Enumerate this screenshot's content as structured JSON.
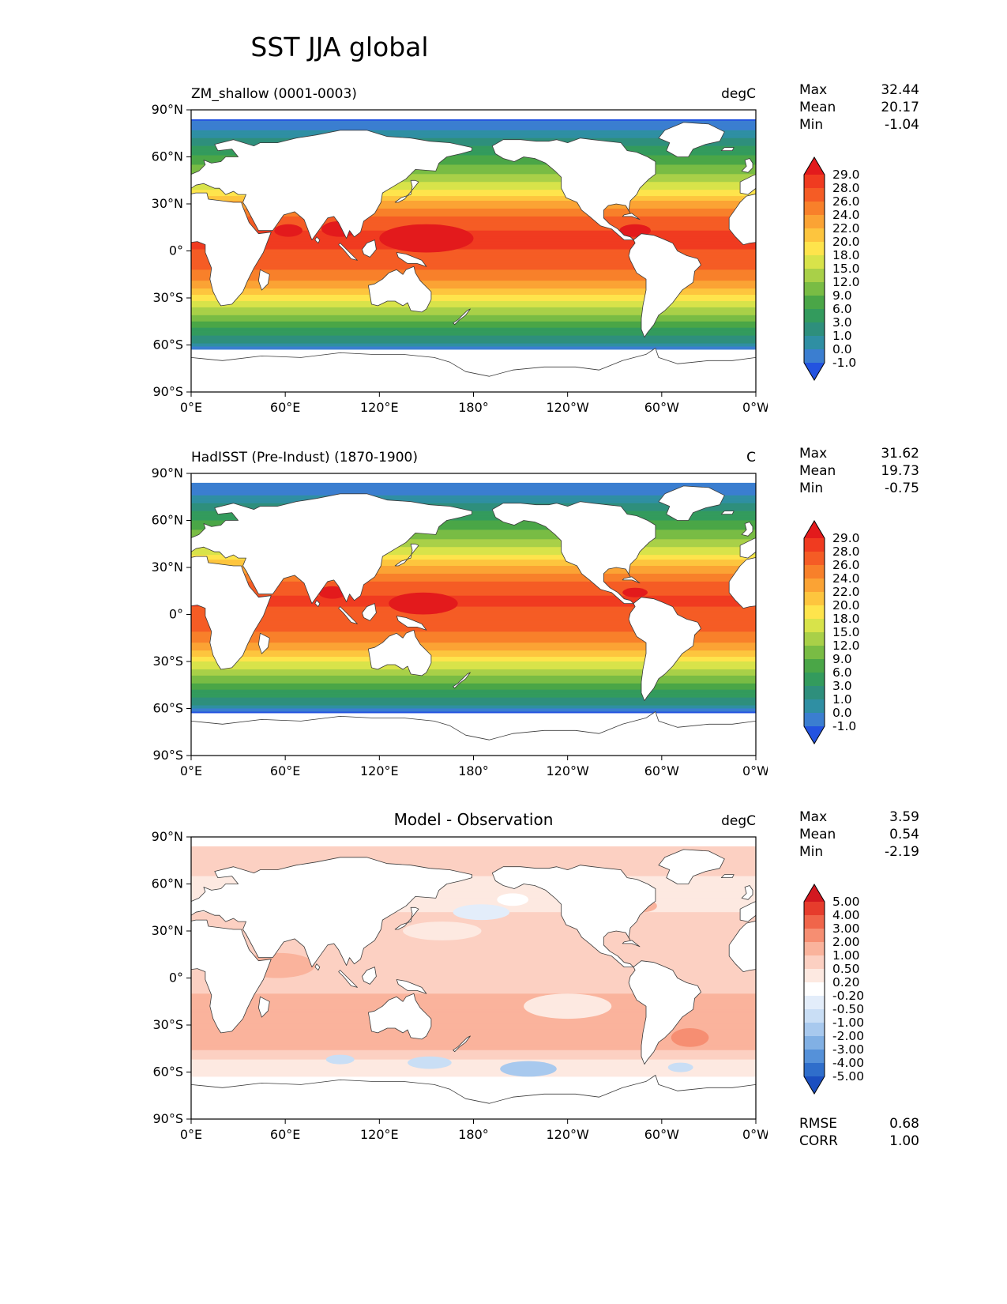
{
  "page_title": "SST JJA global",
  "axes": {
    "lat_ticks": [
      "90°N",
      "60°N",
      "30°N",
      "0°",
      "30°S",
      "60°S",
      "90°S"
    ],
    "lat_values": [
      90,
      60,
      30,
      0,
      -30,
      -60,
      -90
    ],
    "lon_ticks": [
      "0°E",
      "60°E",
      "120°E",
      "180°",
      "120°W",
      "60°W",
      "0°W"
    ],
    "lon_values": [
      0,
      60,
      120,
      180,
      240,
      300,
      360
    ]
  },
  "chart_data": [
    {
      "type": "heatmap",
      "id": "model",
      "title": "ZM_shallow (0001-0003)",
      "units": "degC",
      "stats": {
        "max_label": "Max",
        "max": "32.44",
        "mean_label": "Mean",
        "mean": "20.17",
        "min_label": "Min",
        "min": "-1.04"
      },
      "colorbar": {
        "tick_labels": [
          "29.0",
          "28.0",
          "26.0",
          "24.0",
          "22.0",
          "20.0",
          "18.0",
          "15.0",
          "12.0",
          "9.0",
          "6.0",
          "3.0",
          "1.0",
          "0.0",
          "-1.0"
        ],
        "levels": [
          29,
          28,
          26,
          24,
          22,
          20,
          18,
          15,
          12,
          9,
          6,
          3,
          1,
          0,
          -1
        ],
        "colors": [
          "#e31a1c",
          "#f03b20",
          "#f55c25",
          "#f8802a",
          "#fba334",
          "#fdc53e",
          "#fee44c",
          "#d8e34a",
          "#a9d048",
          "#79bc44",
          "#4aa647",
          "#339b5d",
          "#2e8f7c",
          "#2f8fa3",
          "#3b7ed0",
          "#2353e0"
        ]
      },
      "zonal_profile": {
        "lat": [
          90,
          84,
          80,
          70,
          60,
          50,
          40,
          30,
          20,
          10,
          0,
          -10,
          -20,
          -30,
          -40,
          -50,
          -55,
          -60,
          -62,
          -90
        ],
        "value": [
          -1.3,
          -1.1,
          -0.8,
          1.5,
          6.5,
          11.5,
          17.5,
          23.0,
          26.8,
          28.6,
          27.9,
          26.6,
          23.8,
          19.0,
          12.5,
          5.5,
          2.5,
          0.5,
          -0.5,
          -1.3
        ]
      },
      "features": [
        [
          150,
          8,
          30,
          9,
          29.5
        ],
        [
          95,
          14,
          12,
          5,
          29.5
        ],
        [
          62,
          13,
          9,
          4,
          29.5
        ],
        [
          283,
          13,
          10,
          4,
          29.5
        ]
      ]
    },
    {
      "type": "heatmap",
      "id": "observation",
      "title": "HadISST (Pre-Indust) (1870-1900)",
      "units": "C",
      "stats": {
        "max_label": "Max",
        "max": "31.62",
        "mean_label": "Mean",
        "mean": "19.73",
        "min_label": "Min",
        "min": "-0.75"
      },
      "colorbar": {
        "tick_labels": [
          "29.0",
          "28.0",
          "26.0",
          "24.0",
          "22.0",
          "20.0",
          "18.0",
          "15.0",
          "12.0",
          "9.0",
          "6.0",
          "3.0",
          "1.0",
          "0.0",
          "-1.0"
        ],
        "levels": [
          29,
          28,
          26,
          24,
          22,
          20,
          18,
          15,
          12,
          9,
          6,
          3,
          1,
          0,
          -1
        ],
        "colors": [
          "#e31a1c",
          "#f03b20",
          "#f55c25",
          "#f8802a",
          "#fba334",
          "#fdc53e",
          "#fee44c",
          "#d8e34a",
          "#a9d048",
          "#79bc44",
          "#4aa647",
          "#339b5d",
          "#2e8f7c",
          "#2f8fa3",
          "#3b7ed0",
          "#2353e0"
        ]
      },
      "zonal_profile": {
        "lat": [
          90,
          84,
          80,
          70,
          60,
          50,
          40,
          30,
          20,
          10,
          0,
          -10,
          -20,
          -30,
          -40,
          -50,
          -55,
          -60,
          -62,
          -90
        ],
        "value": [
          -1.2,
          -1.0,
          -0.8,
          1.2,
          6.0,
          11.0,
          17.0,
          22.5,
          26.5,
          28.3,
          27.7,
          26.3,
          23.3,
          18.3,
          11.5,
          4.8,
          2.0,
          0.0,
          -1.0,
          -1.4
        ]
      },
      "features": [
        [
          148,
          7,
          22,
          7,
          29.3
        ],
        [
          90,
          14,
          9,
          4,
          29.3
        ],
        [
          283,
          14,
          8,
          3,
          29.3
        ]
      ]
    },
    {
      "type": "heatmap",
      "id": "difference",
      "title": "Model - Observation",
      "units": "degC",
      "stats": {
        "max_label": "Max",
        "max": "3.59",
        "mean_label": "Mean",
        "mean": "0.54",
        "min_label": "Min",
        "min": "-2.19"
      },
      "colorbar": {
        "tick_labels": [
          "5.00",
          "4.00",
          "3.00",
          "2.00",
          "1.00",
          "0.50",
          "0.20",
          "-0.20",
          "-0.50",
          "-1.00",
          "-2.00",
          "-3.00",
          "-4.00",
          "-5.00"
        ],
        "levels": [
          5,
          4,
          3,
          2,
          1,
          0.5,
          0.2,
          -0.2,
          -0.5,
          -1,
          -2,
          -3,
          -4,
          -5
        ],
        "colors": [
          "#d21820",
          "#e63c2c",
          "#f0654a",
          "#f68e72",
          "#fab39c",
          "#fcd0c2",
          "#fde9e1",
          "#ffffff",
          "#e3edfa",
          "#c9def5",
          "#a8c9ee",
          "#81b0e4",
          "#5591d9",
          "#2f6ecb",
          "#1b4fc0"
        ]
      },
      "zonal_profile": {
        "lat": [
          90,
          82,
          75,
          65,
          55,
          45,
          35,
          25,
          15,
          5,
          -5,
          -15,
          -25,
          -33,
          -38,
          -44,
          -50,
          -55,
          -60,
          -66,
          -90
        ],
        "value": [
          0.6,
          0.65,
          0.6,
          0.5,
          0.35,
          0.45,
          0.6,
          0.8,
          0.85,
          0.8,
          0.9,
          1.1,
          1.3,
          1.5,
          1.4,
          1.2,
          0.6,
          0.3,
          0.3,
          0.1,
          0.1
        ]
      },
      "features": [
        [
          185,
          42,
          18,
          5,
          -0.35
        ],
        [
          205,
          50,
          10,
          4,
          0.1
        ],
        [
          160,
          30,
          25,
          6,
          0.3
        ],
        [
          152,
          -54,
          14,
          4,
          -0.8
        ],
        [
          215,
          -58,
          18,
          5,
          -1.5
        ],
        [
          95,
          -52,
          9,
          3,
          -0.6
        ],
        [
          312,
          -57,
          8,
          3,
          -0.9
        ],
        [
          55,
          8,
          24,
          8,
          1.6
        ],
        [
          318,
          -38,
          12,
          6,
          2.3
        ],
        [
          288,
          46,
          9,
          4,
          1.8
        ],
        [
          240,
          -18,
          28,
          8,
          0.3
        ]
      ],
      "metrics": {
        "rmse_label": "RMSE",
        "rmse": "0.68",
        "corr_label": "CORR",
        "corr": "1.00"
      }
    }
  ]
}
